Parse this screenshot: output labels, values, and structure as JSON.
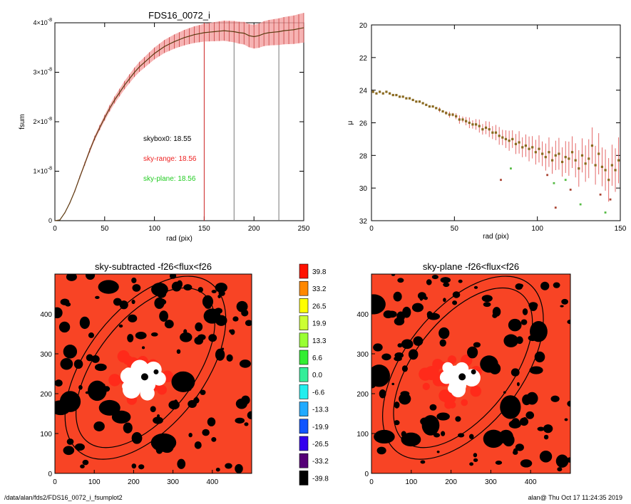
{
  "chart_data": [
    {
      "type": "line",
      "title": "FDS16_0072_i",
      "xlabel": "rad (pix)",
      "ylabel": "fsum",
      "xlim": [
        0,
        250
      ],
      "ylim": [
        0,
        4e-08
      ],
      "x_ticks": [
        "0",
        "50",
        "100",
        "150",
        "200",
        "250"
      ],
      "y_ticks": [
        {
          "value": 0,
          "mant": "0",
          "exp": ""
        },
        {
          "value": 1e-08,
          "mant": "1×10",
          "exp": "-8"
        },
        {
          "value": 2e-08,
          "mant": "2×10",
          "exp": "-8"
        },
        {
          "value": 3e-08,
          "mant": "3×10",
          "exp": "-8"
        },
        {
          "value": 4e-08,
          "mant": "4×10",
          "exp": "-8"
        }
      ],
      "series": [
        {
          "x": [
            0,
            5,
            10,
            15,
            20,
            25,
            30,
            35,
            40,
            45,
            50,
            55,
            60,
            65,
            70,
            75,
            80,
            85,
            90,
            95,
            100,
            105,
            110,
            115,
            120,
            125,
            130,
            135,
            140,
            145,
            150,
            155,
            160,
            165,
            170,
            175,
            180,
            185,
            190,
            195,
            200,
            205,
            210,
            215,
            220,
            225,
            230,
            235,
            240,
            245,
            250
          ],
          "y": [
            0,
            1.5e-10,
            1.6e-09,
            3.6e-09,
            6e-09,
            8.8e-09,
            1.15e-08,
            1.42e-08,
            1.67e-08,
            1.88e-08,
            2.08e-08,
            2.27e-08,
            2.44e-08,
            2.59e-08,
            2.74e-08,
            2.87e-08,
            3e-08,
            3.11e-08,
            3.2e-08,
            3.29e-08,
            3.38e-08,
            3.45e-08,
            3.52e-08,
            3.57e-08,
            3.62e-08,
            3.66e-08,
            3.7e-08,
            3.73e-08,
            3.76e-08,
            3.78e-08,
            3.8e-08,
            3.81e-08,
            3.82e-08,
            3.83e-08,
            3.84e-08,
            3.83e-08,
            3.82e-08,
            3.8e-08,
            3.79e-08,
            3.74e-08,
            3.72e-08,
            3.74e-08,
            3.78e-08,
            3.8e-08,
            3.81e-08,
            3.82e-08,
            3.84e-08,
            3.85e-08,
            3.86e-08,
            3.88e-08,
            3.9e-08
          ]
        }
      ],
      "vlines": [
        {
          "x": 150,
          "color": "#cc2222"
        },
        {
          "x": 180,
          "color": "#777777"
        },
        {
          "x": 225,
          "color": "#777777"
        }
      ],
      "annotations": [
        {
          "text": "skybox0: 18.55",
          "color": "#000000"
        },
        {
          "text": "sky-range: 18.56",
          "color": "#ee2222"
        },
        {
          "text": "sky-plane: 18.56",
          "color": "#22cc22"
        }
      ]
    },
    {
      "type": "scatter",
      "title": "",
      "xlabel": "rad (pix)",
      "ylabel": "μ",
      "xlim": [
        0,
        150
      ],
      "ylim": [
        32,
        20
      ],
      "x_ticks": [
        "0",
        "50",
        "100",
        "150"
      ],
      "y_ticks": [
        "20",
        "22",
        "24",
        "26",
        "28",
        "30",
        "32"
      ],
      "series": [
        {
          "x": [
            1,
            3,
            5,
            7,
            9,
            11,
            13,
            15,
            17,
            19,
            21,
            23,
            25,
            27,
            29,
            31,
            33,
            35,
            37,
            39,
            41,
            43,
            45,
            47,
            49,
            51,
            53,
            55,
            57,
            59,
            61,
            63,
            65,
            67,
            69,
            71,
            73,
            75,
            77,
            79,
            81,
            83,
            85,
            87,
            89,
            91,
            93,
            95,
            97,
            99,
            101,
            103,
            105,
            107,
            109,
            111,
            113,
            115,
            117,
            119,
            121,
            123,
            125,
            127,
            129,
            131,
            133,
            135,
            137,
            139,
            141,
            143,
            145,
            147,
            149
          ],
          "y": [
            24.1,
            24.2,
            24.1,
            24.2,
            24.1,
            24.2,
            24.3,
            24.3,
            24.4,
            24.4,
            24.5,
            24.5,
            24.6,
            24.7,
            24.7,
            24.8,
            24.9,
            25.0,
            25.0,
            25.1,
            25.2,
            25.3,
            25.4,
            25.5,
            25.5,
            25.6,
            25.8,
            25.8,
            25.9,
            26.0,
            26.1,
            26.1,
            26.2,
            26.4,
            26.3,
            26.4,
            26.6,
            26.6,
            26.8,
            26.9,
            27.0,
            27.1,
            27.0,
            27.3,
            27.2,
            27.5,
            27.4,
            27.6,
            27.5,
            27.8,
            27.6,
            27.9,
            28.1,
            27.8,
            28.3,
            28.0,
            27.9,
            28.4,
            28.1,
            28.2,
            27.8,
            28.3,
            28.8,
            28.0,
            28.5,
            28.2,
            27.4,
            28.6,
            27.9,
            28.7,
            28.9,
            29.5,
            28.6,
            28.9,
            28.3
          ]
        },
        {
          "x": [
            78,
            84,
            106,
            110,
            111,
            117,
            120,
            126,
            138,
            141,
            144
          ],
          "y": [
            29.5,
            28.8,
            29.2,
            29.7,
            31.2,
            29.5,
            30.1,
            31.0,
            30.4,
            31.5,
            30.7
          ]
        }
      ]
    },
    {
      "type": "heatmap",
      "title": "sky-subtracted -f26<flux<f26",
      "xlim": [
        0,
        500
      ],
      "ylim": [
        0,
        500
      ],
      "x_ticks": [
        "0",
        "100",
        "200",
        "300",
        "400"
      ],
      "y_ticks": [
        "0",
        "100",
        "200",
        "300",
        "400"
      ]
    },
    {
      "type": "heatmap",
      "title": "sky-plane -f26<flux<f26",
      "xlim": [
        0,
        500
      ],
      "ylim": [
        0,
        500
      ],
      "x_ticks": [
        "0",
        "100",
        "200",
        "300",
        "400"
      ],
      "y_ticks": [
        "0",
        "100",
        "200",
        "300",
        "400"
      ]
    }
  ],
  "colorbar": {
    "levels": [
      {
        "label": "39.8",
        "color": "#ff1100"
      },
      {
        "label": "33.2",
        "color": "#ff8800"
      },
      {
        "label": "26.5",
        "color": "#ffff00"
      },
      {
        "label": "19.9",
        "color": "#ccff33"
      },
      {
        "label": "13.3",
        "color": "#99ff33"
      },
      {
        "label": "6.6",
        "color": "#33ee33"
      },
      {
        "label": "0.0",
        "color": "#33ee99"
      },
      {
        "label": "-6.6",
        "color": "#22eeee"
      },
      {
        "label": "-13.3",
        "color": "#22aaff"
      },
      {
        "label": "-19.9",
        "color": "#1155ff"
      },
      {
        "label": "-26.5",
        "color": "#3300ee"
      },
      {
        "label": "-33.2",
        "color": "#550077"
      },
      {
        "label": "-39.8",
        "color": "#000000"
      }
    ]
  },
  "footer": {
    "left": "/data/alan/fds2/FDS16_0072_i_fsumplot2",
    "right": "alan@  Thu Oct 17 11:24:35 2019"
  }
}
